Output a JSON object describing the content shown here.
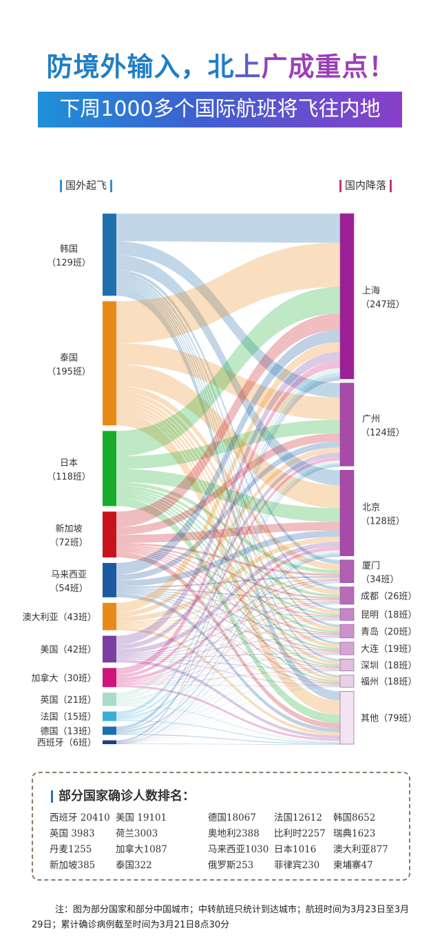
{
  "header": {
    "title_part1": "防境外输入，北",
    "title_part2": "上",
    "title_part3": "广成重点！",
    "subtitle": "下周1000多个国际航班将飞往内地"
  },
  "colors": {
    "title_blue": "#1f7fc6",
    "title_purple": "#9b3fb5",
    "left_bar": "#2f8fd8",
    "right_bar": "#c0337e"
  },
  "left_heading": "国外起飞",
  "right_heading": "国内降落",
  "chart_data": {
    "type": "sankey",
    "sources": [
      {
        "name": "韩国",
        "sub": "（129班）",
        "value": 129,
        "color": "#1f6fad"
      },
      {
        "name": "泰国",
        "sub": "（195班）",
        "value": 195,
        "color": "#e88a1a"
      },
      {
        "name": "日本",
        "sub": "（118班）",
        "value": 118,
        "color": "#1aab2a"
      },
      {
        "name": "新加坡",
        "sub": "（72班）",
        "value": 72,
        "color": "#c8131e"
      },
      {
        "name": "马来西亚",
        "sub": "（54班）",
        "value": 54,
        "color": "#1d5aa0"
      },
      {
        "name": "澳大利亚（43班）",
        "sub": "",
        "value": 43,
        "color": "#e88a1a"
      },
      {
        "name": "美国（42班）",
        "sub": "",
        "value": 42,
        "color": "#7a3fa0"
      },
      {
        "name": "加拿大（30班）",
        "sub": "",
        "value": 30,
        "color": "#d0147a"
      },
      {
        "name": "英国（21班）",
        "sub": "",
        "value": 21,
        "color": "#a8dcc8"
      },
      {
        "name": "法国（15班）",
        "sub": "",
        "value": 15,
        "color": "#3aaed8"
      },
      {
        "name": "德国（13班）",
        "sub": "",
        "value": 13,
        "color": "#1f6fad"
      },
      {
        "name": "西班牙（6班）",
        "sub": "",
        "value": 6,
        "color": "#1d3e80"
      }
    ],
    "targets": [
      {
        "name": "上海",
        "sub": "（247班）",
        "value": 247,
        "color": "#9c1f96"
      },
      {
        "name": "广州",
        "sub": "（124班）",
        "value": 124,
        "color": "#a74aa8"
      },
      {
        "name": "北京",
        "sub": "（128班）",
        "value": 128,
        "color": "#a74aa8"
      },
      {
        "name": "厦门",
        "sub": "（34班）",
        "value": 34,
        "color": "#b060b0"
      },
      {
        "name": "成都（26班）",
        "sub": "",
        "value": 26,
        "color": "#b86cb8"
      },
      {
        "name": "昆明（18班）",
        "sub": "",
        "value": 18,
        "color": "#c486c4"
      },
      {
        "name": "青岛（20班）",
        "sub": "",
        "value": 20,
        "color": "#cc94cc"
      },
      {
        "name": "大连（19班）",
        "sub": "",
        "value": 19,
        "color": "#d4a6d4"
      },
      {
        "name": "深圳（18班）",
        "sub": "",
        "value": 18,
        "color": "#e0c0e0"
      },
      {
        "name": "福州（18班）",
        "sub": "",
        "value": 18,
        "color": "#e8d0e8"
      },
      {
        "name": "其他（79班）",
        "sub": "",
        "value": 79,
        "color": "#f2e4f2"
      }
    ]
  },
  "cases": {
    "title": "部分国家确诊人数排名：",
    "rows": [
      [
        "西班牙 20410",
        "美国 19101",
        "德国18067",
        "法国12612",
        "韩国8652"
      ],
      [
        "英国 3983",
        "荷兰3003",
        "奥地利2388",
        "比利时2257",
        "瑞典1623"
      ],
      [
        "丹麦1255",
        "加拿大1087",
        "马来西亚1030",
        "日本1016",
        "澳大利亚877"
      ],
      [
        "新加坡385",
        "泰国322",
        "俄罗斯253",
        "菲律宾230",
        "柬埔寨47"
      ]
    ]
  },
  "note": "注：图为部分国家和部分中国城市；中转航班只统计到达城市；航班时间为3月23日至3月29日；累计确诊病例截至时间为3月21日8点30分"
}
